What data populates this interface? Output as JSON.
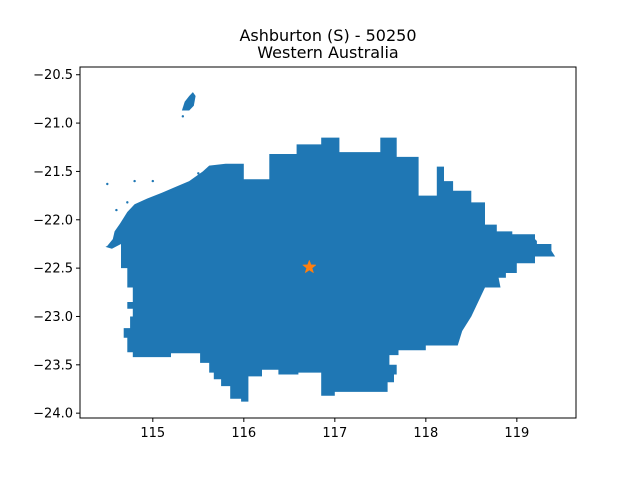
{
  "map": {
    "title_line1": "Ashburton (S) - 50250",
    "title_line2": "Western Australia",
    "xlim": [
      114.2,
      119.65
    ],
    "ylim": [
      -24.05,
      -20.42
    ],
    "x_ticks": [
      115,
      116,
      117,
      118,
      119
    ],
    "x_tick_labels": [
      "115",
      "116",
      "117",
      "118",
      "119"
    ],
    "y_ticks": [
      -20.5,
      -21.0,
      -21.5,
      -22.0,
      -22.5,
      -23.0,
      -23.5,
      -24.0
    ],
    "y_tick_labels": [
      "−20.5",
      "−21.0",
      "−21.5",
      "−22.0",
      "−22.5",
      "−23.0",
      "−23.5",
      "−24.0"
    ],
    "region_color": "#1f77b4",
    "marker": {
      "lon": 116.72,
      "lat": -22.49,
      "color": "#ff7f0e",
      "shape": "star"
    },
    "main_polygon": [
      [
        114.5,
        -22.27
      ],
      [
        114.56,
        -22.2
      ],
      [
        114.58,
        -22.12
      ],
      [
        114.64,
        -22.04
      ],
      [
        114.68,
        -21.98
      ],
      [
        114.72,
        -21.92
      ],
      [
        114.8,
        -21.84
      ],
      [
        114.94,
        -21.78
      ],
      [
        115.1,
        -21.72
      ],
      [
        115.25,
        -21.66
      ],
      [
        115.4,
        -21.6
      ],
      [
        115.55,
        -21.5
      ],
      [
        115.62,
        -21.44
      ],
      [
        115.8,
        -21.42
      ],
      [
        116.0,
        -21.42
      ],
      [
        116.0,
        -21.58
      ],
      [
        116.28,
        -21.58
      ],
      [
        116.28,
        -21.32
      ],
      [
        116.58,
        -21.32
      ],
      [
        116.58,
        -21.22
      ],
      [
        116.85,
        -21.22
      ],
      [
        116.85,
        -21.15
      ],
      [
        117.05,
        -21.15
      ],
      [
        117.05,
        -21.3
      ],
      [
        117.5,
        -21.3
      ],
      [
        117.5,
        -21.15
      ],
      [
        117.68,
        -21.15
      ],
      [
        117.68,
        -21.35
      ],
      [
        117.92,
        -21.35
      ],
      [
        117.92,
        -21.75
      ],
      [
        118.12,
        -21.75
      ],
      [
        118.12,
        -21.45
      ],
      [
        118.2,
        -21.45
      ],
      [
        118.2,
        -21.6
      ],
      [
        118.3,
        -21.6
      ],
      [
        118.3,
        -21.7
      ],
      [
        118.5,
        -21.7
      ],
      [
        118.5,
        -21.82
      ],
      [
        118.65,
        -21.82
      ],
      [
        118.65,
        -22.05
      ],
      [
        118.78,
        -22.05
      ],
      [
        118.78,
        -22.12
      ],
      [
        118.95,
        -22.12
      ],
      [
        118.95,
        -22.15
      ],
      [
        119.2,
        -22.15
      ],
      [
        119.2,
        -22.2
      ],
      [
        119.22,
        -22.22
      ],
      [
        119.22,
        -22.25
      ],
      [
        119.38,
        -22.25
      ],
      [
        119.38,
        -22.32
      ],
      [
        119.42,
        -22.38
      ],
      [
        119.2,
        -22.38
      ],
      [
        119.2,
        -22.45
      ],
      [
        119.0,
        -22.45
      ],
      [
        119.0,
        -22.55
      ],
      [
        118.88,
        -22.55
      ],
      [
        118.88,
        -22.6
      ],
      [
        118.8,
        -22.6
      ],
      [
        118.82,
        -22.7
      ],
      [
        118.65,
        -22.7
      ],
      [
        118.5,
        -23.0
      ],
      [
        118.4,
        -23.15
      ],
      [
        118.35,
        -23.3
      ],
      [
        118.15,
        -23.3
      ],
      [
        118.0,
        -23.3
      ],
      [
        118.0,
        -23.35
      ],
      [
        117.7,
        -23.35
      ],
      [
        117.7,
        -23.4
      ],
      [
        117.6,
        -23.4
      ],
      [
        117.6,
        -23.5
      ],
      [
        117.68,
        -23.5
      ],
      [
        117.68,
        -23.6
      ],
      [
        117.65,
        -23.6
      ],
      [
        117.65,
        -23.68
      ],
      [
        117.58,
        -23.68
      ],
      [
        117.58,
        -23.78
      ],
      [
        117.0,
        -23.78
      ],
      [
        117.0,
        -23.82
      ],
      [
        116.85,
        -23.82
      ],
      [
        116.85,
        -23.58
      ],
      [
        116.6,
        -23.58
      ],
      [
        116.6,
        -23.6
      ],
      [
        116.38,
        -23.6
      ],
      [
        116.38,
        -23.55
      ],
      [
        116.2,
        -23.55
      ],
      [
        116.2,
        -23.62
      ],
      [
        116.05,
        -23.62
      ],
      [
        116.05,
        -23.88
      ],
      [
        115.97,
        -23.88
      ],
      [
        115.97,
        -23.85
      ],
      [
        115.85,
        -23.85
      ],
      [
        115.85,
        -23.72
      ],
      [
        115.75,
        -23.72
      ],
      [
        115.75,
        -23.65
      ],
      [
        115.67,
        -23.65
      ],
      [
        115.67,
        -23.58
      ],
      [
        115.62,
        -23.58
      ],
      [
        115.62,
        -23.48
      ],
      [
        115.52,
        -23.48
      ],
      [
        115.52,
        -23.45
      ],
      [
        115.52,
        -23.38
      ],
      [
        115.2,
        -23.38
      ],
      [
        115.2,
        -23.42
      ],
      [
        114.78,
        -23.42
      ],
      [
        114.78,
        -23.37
      ],
      [
        114.72,
        -23.37
      ],
      [
        114.72,
        -23.22
      ],
      [
        114.68,
        -23.22
      ],
      [
        114.68,
        -23.12
      ],
      [
        114.75,
        -23.12
      ],
      [
        114.75,
        -23.0
      ],
      [
        114.78,
        -23.0
      ],
      [
        114.78,
        -22.92
      ],
      [
        114.72,
        -22.92
      ],
      [
        114.72,
        -22.85
      ],
      [
        114.78,
        -22.85
      ],
      [
        114.78,
        -22.7
      ],
      [
        114.72,
        -22.7
      ],
      [
        114.72,
        -22.5
      ],
      [
        114.65,
        -22.5
      ],
      [
        114.65,
        -22.25
      ],
      [
        114.55,
        -22.3
      ],
      [
        114.48,
        -22.28
      ]
    ],
    "island_polygon": [
      [
        115.32,
        -20.87
      ],
      [
        115.35,
        -20.78
      ],
      [
        115.4,
        -20.72
      ],
      [
        115.44,
        -20.68
      ],
      [
        115.47,
        -20.72
      ],
      [
        115.45,
        -20.82
      ],
      [
        115.4,
        -20.87
      ]
    ],
    "islets": [
      [
        115.33,
        -20.93
      ],
      [
        114.8,
        -21.6
      ],
      [
        115.0,
        -21.6
      ],
      [
        114.6,
        -21.9
      ],
      [
        114.72,
        -21.82
      ],
      [
        115.5,
        -21.52
      ],
      [
        115.2,
        -21.7
      ],
      [
        114.5,
        -21.63
      ]
    ]
  }
}
